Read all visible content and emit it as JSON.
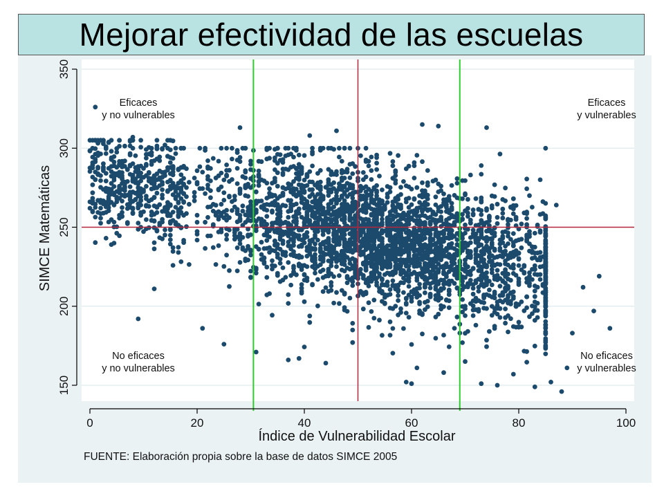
{
  "title": "Mejorar efectividad de las escuelas",
  "source_note": "FUENTE: Elaboración propia sobre la base de datos SIMCE 2005",
  "colors": {
    "title_bg": "#b9e3e3",
    "panel_bg": "#eaf2f3",
    "plot_bg": "#ffffff",
    "points": "#1c4a6c",
    "mean_lines": "#b3263b",
    "tercile_lines": "#2ecc2e",
    "grid": "#d8e6ea"
  },
  "chart_data": {
    "type": "scatter",
    "title": "Mejorar efectividad de las escuelas",
    "xlabel": "Índice de Vulnerabilidad Escolar",
    "ylabel": "SIMCE Matemáticas",
    "xlim": [
      0,
      100
    ],
    "ylim": [
      150,
      350
    ],
    "x_ticks": [
      0,
      20,
      40,
      60,
      80,
      100
    ],
    "y_ticks": [
      150,
      200,
      250,
      300,
      350
    ],
    "grid": "horizontal",
    "reference_lines": {
      "horizontal_red": 250,
      "vertical_red": 50,
      "vertical_green": [
        30.5,
        69
      ]
    },
    "quadrant_labels": [
      {
        "lines": [
          "Eficaces",
          "y no vulnerables"
        ],
        "position": "top-left"
      },
      {
        "lines": [
          "Eficaces",
          "y vulnerables"
        ],
        "position": "top-right"
      },
      {
        "lines": [
          "No eficaces",
          "y no vulnerables"
        ],
        "position": "bottom-left"
      },
      {
        "lines": [
          "No eficaces",
          "y vulnerables"
        ],
        "position": "bottom-right"
      }
    ],
    "trend": {
      "intercept": 282,
      "slope": -0.72,
      "noise_sd": 21
    },
    "series": [
      {
        "points": [
          [
            1,
            326
          ],
          [
            8,
            307
          ],
          [
            28,
            313
          ],
          [
            33,
            299
          ],
          [
            41,
            308
          ],
          [
            46,
            311
          ],
          [
            62,
            315
          ],
          [
            65,
            314
          ],
          [
            74,
            313
          ],
          [
            9,
            192
          ],
          [
            4,
            239
          ],
          [
            12,
            211
          ],
          [
            21,
            186
          ],
          [
            25,
            176
          ],
          [
            31,
            171
          ],
          [
            37,
            166
          ],
          [
            39,
            167
          ],
          [
            44,
            164
          ],
          [
            59,
            152
          ],
          [
            60,
            151
          ],
          [
            61,
            161
          ],
          [
            66,
            158
          ],
          [
            70,
            165
          ],
          [
            73,
            151
          ],
          [
            76,
            150
          ],
          [
            79,
            157
          ],
          [
            83,
            149
          ],
          [
            86,
            152
          ],
          [
            88,
            146
          ],
          [
            89,
            161
          ],
          [
            90,
            183
          ],
          [
            92,
            212
          ],
          [
            94,
            197
          ],
          [
            95,
            219
          ],
          [
            97,
            186
          ],
          [
            84,
            280
          ],
          [
            87,
            264
          ],
          [
            82,
            270
          ],
          [
            78,
            255
          ],
          [
            73,
            289
          ]
        ]
      }
    ]
  }
}
